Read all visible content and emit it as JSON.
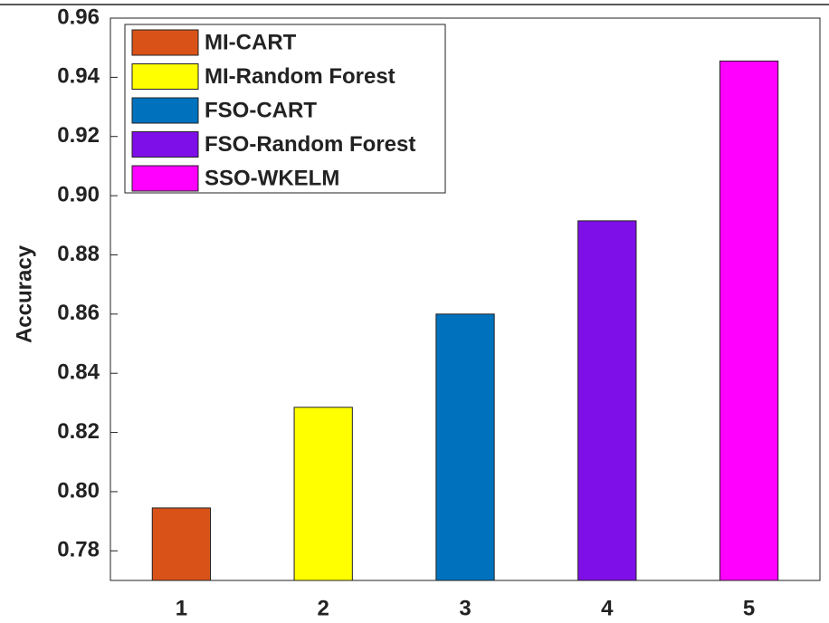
{
  "chart_data": {
    "type": "bar",
    "ylabel": "Accuracy",
    "categories": [
      "1",
      "2",
      "3",
      "4",
      "5"
    ],
    "series": [
      {
        "name": "MI-CART",
        "color": "#d95319",
        "values": [
          0.7945,
          null,
          null,
          null,
          null
        ]
      },
      {
        "name": "MI-Random Forest",
        "color": "#ffff00",
        "values": [
          null,
          0.8285,
          null,
          null,
          null
        ]
      },
      {
        "name": "FSO-CART",
        "color": "#0072bd",
        "values": [
          null,
          null,
          0.86,
          null,
          null
        ]
      },
      {
        "name": "FSO-Random Forest",
        "color": "#7e0fe8",
        "values": [
          null,
          null,
          null,
          0.8915,
          null
        ]
      },
      {
        "name": "SSO-WKELM",
        "color": "#ff00ff",
        "values": [
          null,
          null,
          null,
          null,
          0.9455
        ]
      }
    ],
    "ylim": [
      0.77,
      0.96
    ],
    "yticks": [
      0.78,
      {
        "value": 0.8,
        "label": "0.80"
      },
      0.82,
      0.84,
      0.86,
      0.88,
      {
        "value": 0.9,
        "label": "0.90"
      },
      0.92,
      0.94,
      0.96
    ],
    "legend": "upper left"
  }
}
